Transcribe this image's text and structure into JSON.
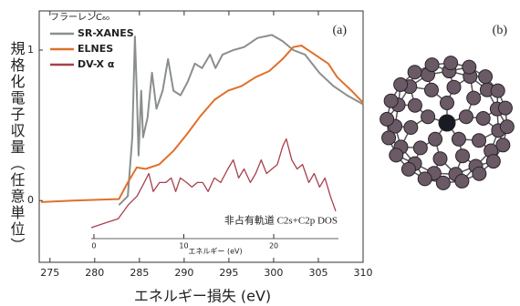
{
  "chart_data": {
    "type": "line",
    "panel_label": "(a)",
    "panel_b_label": "(b)",
    "ylabel": "規格化電子収量（任意単位）",
    "xlabel": "エネルギー損失 (eV)",
    "legend_title": "フラーレンC₆₀",
    "legend": "upper left",
    "inset_label": "非占有軌道 C2s+C2p DOS",
    "x2label": "エネルギー (eV)",
    "xlim": [
      273.8,
      310
    ],
    "xticks": [
      275,
      280,
      285,
      290,
      295,
      300,
      305,
      310
    ],
    "ylim": [
      -0.41,
      1.26
    ],
    "yticks": [
      0,
      1
    ],
    "x2lim": [
      -0.3,
      27.2
    ],
    "x2ticks": [
      0,
      10,
      20
    ],
    "series": [
      {
        "name": "SR-XANES",
        "color": "#8a8f8c",
        "x": [
          282.7,
          283.7,
          284.2,
          284.5,
          284.7,
          284.9,
          285.2,
          285.4,
          285.9,
          286.4,
          286.9,
          287.6,
          288.2,
          288.8,
          289.6,
          290.4,
          291.2,
          292.0,
          292.9,
          293.5,
          294.3,
          295.5,
          296.7,
          298.2,
          299.8,
          301.0,
          302.2,
          303.5,
          305.1,
          306.7,
          308.2,
          310
        ],
        "values": [
          -0.03,
          0.03,
          0.42,
          1.09,
          0.73,
          0.3,
          0.73,
          0.42,
          0.55,
          0.85,
          0.61,
          0.73,
          0.94,
          0.73,
          0.7,
          0.79,
          0.91,
          0.88,
          0.97,
          0.88,
          0.97,
          1.0,
          1.02,
          1.08,
          1.1,
          1.06,
          1.0,
          0.97,
          0.85,
          0.76,
          0.7,
          0.64
        ]
      },
      {
        "name": "ELNES",
        "color": "#e0702a",
        "x": [
          274.0,
          277.6,
          282.7,
          283.7,
          284.7,
          285.7,
          287.2,
          288.8,
          290.3,
          291.8,
          293.4,
          294.9,
          296.4,
          298.0,
          299.5,
          301.0,
          302.2,
          303.1,
          304.1,
          305.1,
          306.1,
          307.1,
          308.7,
          310
        ],
        "values": [
          -0.01,
          0,
          0.01,
          0.12,
          0.22,
          0.21,
          0.24,
          0.33,
          0.44,
          0.56,
          0.67,
          0.73,
          0.76,
          0.82,
          0.86,
          0.94,
          1.02,
          1.03,
          0.99,
          0.95,
          0.91,
          0.82,
          0.73,
          0.65
        ]
      },
      {
        "name": "DV-X α",
        "color": "#a8404c",
        "axis": "x2",
        "x": [
          -0.3,
          1.2,
          2.7,
          3.8,
          4.8,
          5.6,
          6.1,
          6.6,
          7.3,
          8.0,
          8.6,
          9.1,
          9.6,
          10.3,
          10.9,
          11.5,
          12.1,
          12.7,
          13.4,
          14.1,
          14.9,
          15.5,
          16.1,
          16.7,
          17.4,
          18.0,
          18.6,
          19.2,
          19.8,
          20.4,
          21.0,
          21.4,
          22.0,
          22.6,
          23.2,
          23.9,
          24.5,
          25.1,
          25.7,
          26.3,
          26.9
        ],
        "values": [
          -0.18,
          -0.15,
          -0.12,
          -0.03,
          0.03,
          0.12,
          0.18,
          0.06,
          0.12,
          0.12,
          0.15,
          0.06,
          0.15,
          0.12,
          0.09,
          0.12,
          0.12,
          0.06,
          0.15,
          0.12,
          0.21,
          0.27,
          0.15,
          0.21,
          0.12,
          0.18,
          0.27,
          0.18,
          0.21,
          0.24,
          0.36,
          0.41,
          0.27,
          0.21,
          0.24,
          0.12,
          0.18,
          0.09,
          0.15,
          0.03,
          -0.07
        ]
      }
    ]
  }
}
